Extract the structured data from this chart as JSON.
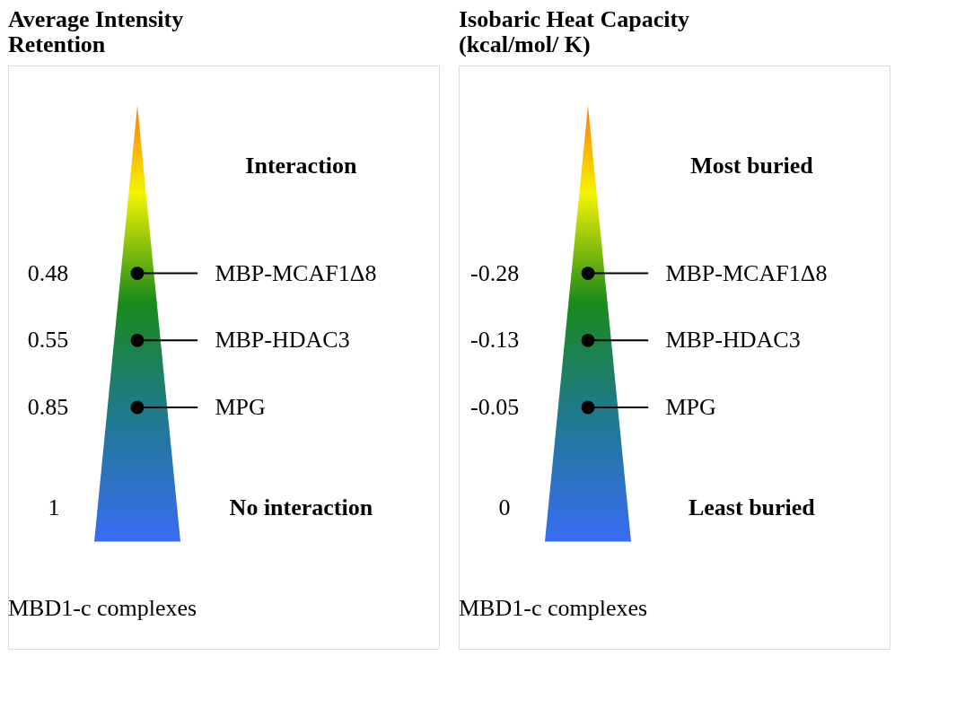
{
  "chart_data": [
    {
      "type": "other",
      "title": "Average Intensity\nRetention",
      "categories": [
        "MBP-MCAF1Δ8",
        "MBP-HDAC3",
        "MPG"
      ],
      "values": [
        0.48,
        0.55,
        0.85
      ],
      "data_labels": true,
      "annotations": [
        "Interaction",
        "No interaction",
        "1",
        "MBD1-c complexes"
      ]
    },
    {
      "type": "other",
      "title": "Isobaric Heat Capacity\n(kcal/mol/ K)",
      "categories": [
        "MBP-MCAF1Δ8",
        "MBP-HDAC3",
        "MPG"
      ],
      "values": [
        -0.28,
        -0.13,
        -0.05
      ],
      "data_labels": true,
      "annotations": [
        "Most buried",
        "Least buried",
        "0",
        "MBD1-c complexes"
      ]
    }
  ]
}
